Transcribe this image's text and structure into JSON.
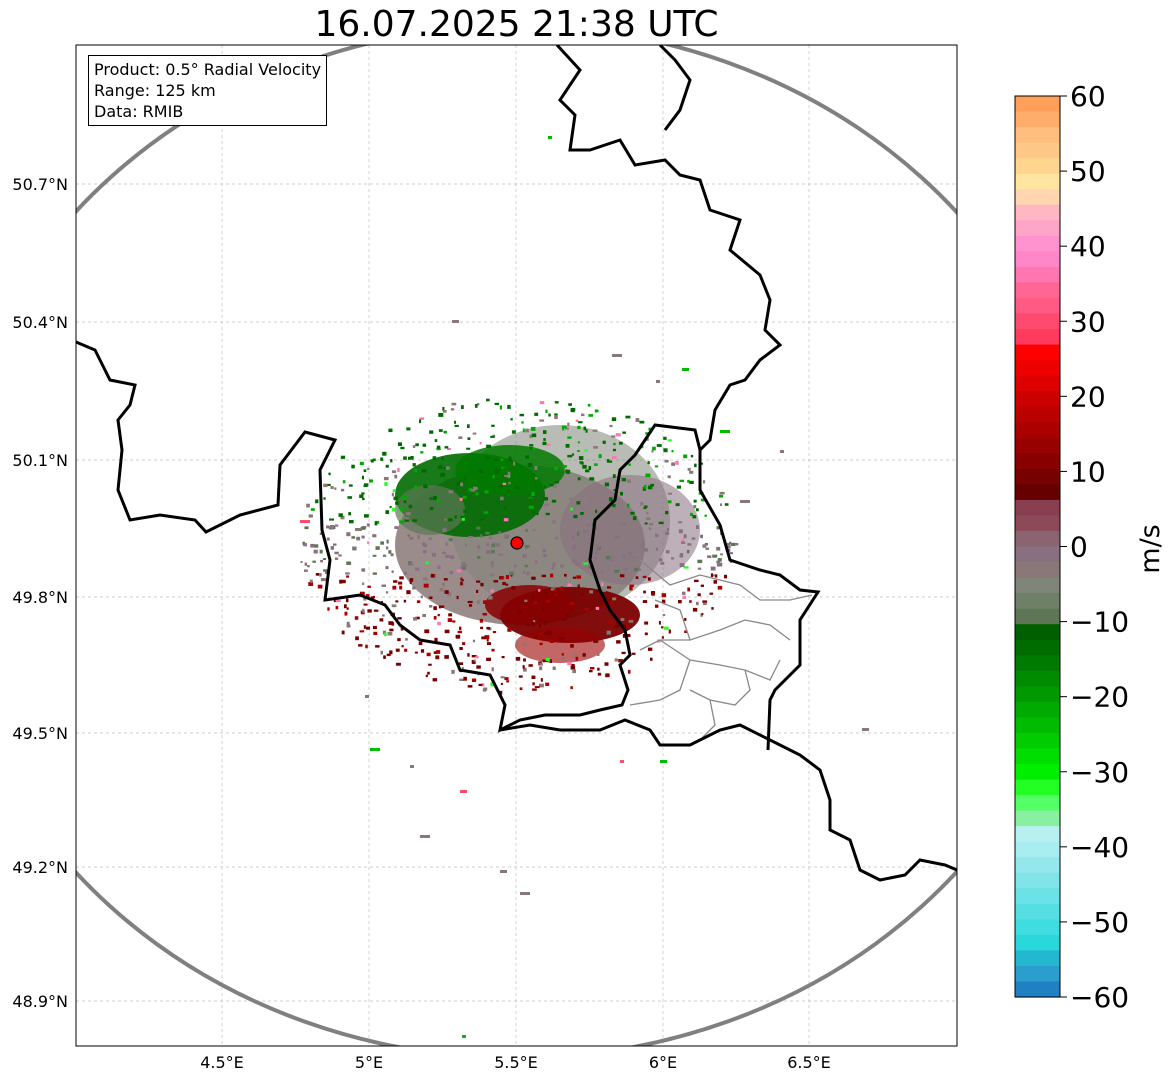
{
  "title": "16.07.2025 21:38 UTC",
  "info": {
    "product": "Product: 0.5° Radial Velocity",
    "range": "Range: 125 km",
    "source": "Data: RMIB"
  },
  "axes": {
    "lat_ticks": [
      "50.7°N",
      "50.4°N",
      "50.1°N",
      "49.8°N",
      "49.5°N",
      "49.2°N",
      "48.9°N"
    ],
    "lon_ticks": [
      "4.5°E",
      "5°E",
      "5.5°E",
      "6°E",
      "6.5°E"
    ]
  },
  "colorbar": {
    "unit": "m/s",
    "ticks": [
      "60",
      "50",
      "40",
      "30",
      "20",
      "10",
      "0",
      "−10",
      "−20",
      "−30",
      "−40",
      "−50",
      "−60"
    ],
    "colors": [
      "#ff9f5a",
      "#ffad6a",
      "#ffbe7e",
      "#ffc887",
      "#ffd58f",
      "#ffe5a0",
      "#ffd6b0",
      "#ffb8c2",
      "#ffa6c8",
      "#ff92cf",
      "#ff86c8",
      "#ff76b0",
      "#ff6694",
      "#ff5a84",
      "#ff4a70",
      "#ff3a5c",
      "#ff0000",
      "#ee0000",
      "#dd0000",
      "#cc0000",
      "#bb0000",
      "#aa0000",
      "#990000",
      "#880000",
      "#770000",
      "#660000",
      "#884050",
      "#8c4a58",
      "#8a6470",
      "#887080",
      "#8a7878",
      "#7f8578",
      "#6e8068",
      "#5e7656",
      "#006000",
      "#006c00",
      "#007a00",
      "#008a00",
      "#009a00",
      "#00aa00",
      "#00bb00",
      "#00cc00",
      "#00dd00",
      "#00ee00",
      "#22ff22",
      "#55ff66",
      "#88f0a0",
      "#b8f0f0",
      "#a8eef0",
      "#94e8ec",
      "#80e4e8",
      "#6ae2e6",
      "#56dfe2",
      "#40dde0",
      "#2ad8dc",
      "#24b8d0",
      "#2a9ecc",
      "#2080c4"
    ]
  },
  "station": {
    "name": "radar-site",
    "lat": 49.914,
    "lon": 5.505
  },
  "range_ring_km": 125,
  "colors": {
    "country_border": "#000000",
    "province_border": "#888888",
    "range_ring": "#808080",
    "receding": "#7a0000",
    "approaching": "#007000",
    "near_zero": "#8a7878"
  }
}
